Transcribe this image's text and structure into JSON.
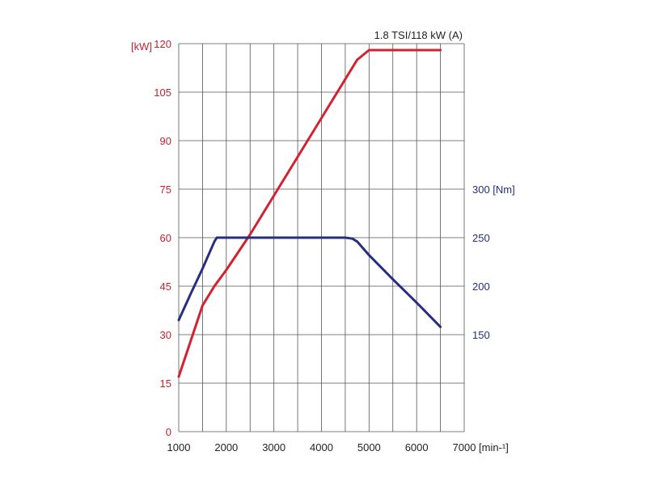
{
  "chart_data": {
    "type": "line",
    "title": "1.8 TSI/118 kW (A)",
    "x_unit": "[min-¹]",
    "xlim": [
      1000,
      7000
    ],
    "x_ticks": [
      "1000",
      "2000",
      "3000",
      "4000",
      "5000",
      "6000",
      "7000"
    ],
    "y_left": {
      "unit": "[kW]",
      "ylim": [
        0,
        120
      ],
      "ticks": [
        "0",
        "15",
        "30",
        "45",
        "60",
        "75",
        "90",
        "105",
        "120"
      ],
      "color": "#c8202f"
    },
    "y_right": {
      "unit": "[Nm]",
      "ticks": [
        {
          "label": "150",
          "value": 150
        },
        {
          "label": "200",
          "value": 200
        },
        {
          "label": "250",
          "value": 250
        },
        {
          "label": "300",
          "value": 300
        }
      ],
      "color": "#22307a"
    },
    "grid": true,
    "series": [
      {
        "axis": "left",
        "color": "#d3222f",
        "x": [
          1000,
          1250,
          1500,
          1750,
          2000,
          2500,
          3000,
          3500,
          4000,
          4500,
          4750,
          5000,
          5250,
          6500
        ],
        "y": [
          17,
          28,
          39,
          45,
          50,
          61,
          73,
          85,
          97,
          109,
          115,
          118,
          118,
          118
        ]
      },
      {
        "axis": "right",
        "color": "#262f7e",
        "x": [
          1000,
          1250,
          1500,
          1750,
          1800,
          2000,
          3000,
          4000,
          4500,
          4650,
          4750,
          5000,
          5500,
          6000,
          6500
        ],
        "y": [
          165,
          192,
          218,
          246,
          250,
          250,
          250,
          250,
          250,
          249,
          246,
          232,
          207,
          183,
          158
        ]
      }
    ]
  }
}
